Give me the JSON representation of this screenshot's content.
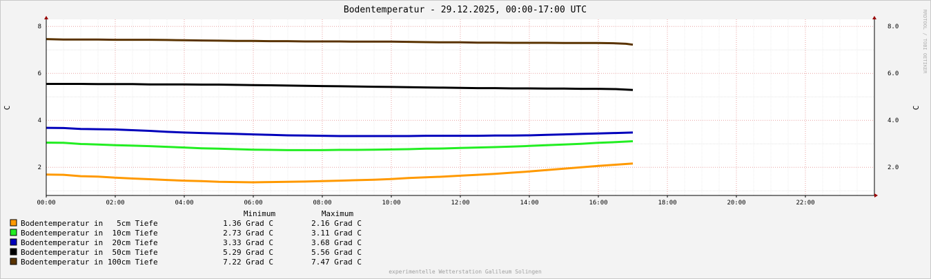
{
  "chart_data": {
    "type": "line",
    "title": "Bodentemperatur - 29.12.2025, 00:00-17:00 UTC",
    "ylabel_left": "C",
    "ylabel_right": "C",
    "watermark": "RRDTOOL / TOBI OETIKER",
    "footer": "experimentelle Wetterstation Galileum Solingen",
    "xlim": [
      0,
      24
    ],
    "ylim": [
      0.8,
      8.3
    ],
    "x_ticks": [
      "00:00",
      "02:00",
      "04:00",
      "06:00",
      "08:00",
      "10:00",
      "12:00",
      "14:00",
      "16:00",
      "18:00",
      "20:00",
      "22:00"
    ],
    "y_ticks_left": [
      "2",
      "4",
      "6",
      "8"
    ],
    "y_ticks_right": [
      "2.0",
      "4.0",
      "6.0",
      "8.0"
    ],
    "legend_header": {
      "min": "Minimum",
      "max": "Maximum"
    },
    "legend_placement": "bottom-left",
    "series": [
      {
        "name": "Bodentemperatur in   5cm Tiefe",
        "color": "#ff9900",
        "min": "1.36 Grad C",
        "max": "2.16 Grad C",
        "x": [
          0,
          0.5,
          1.0,
          1.5,
          2.0,
          2.5,
          3.0,
          3.5,
          4.0,
          4.5,
          5.0,
          5.5,
          6.0,
          6.5,
          7.0,
          7.5,
          8.0,
          8.5,
          9.0,
          9.5,
          10.0,
          10.5,
          11.0,
          11.5,
          12.0,
          12.5,
          13.0,
          13.5,
          14.0,
          14.5,
          15.0,
          15.5,
          16.0,
          16.5,
          17.0
        ],
        "y": [
          1.69,
          1.68,
          1.62,
          1.6,
          1.56,
          1.52,
          1.49,
          1.46,
          1.43,
          1.41,
          1.38,
          1.37,
          1.36,
          1.37,
          1.38,
          1.39,
          1.41,
          1.43,
          1.45,
          1.47,
          1.5,
          1.54,
          1.57,
          1.6,
          1.64,
          1.68,
          1.72,
          1.77,
          1.82,
          1.88,
          1.94,
          2.0,
          2.06,
          2.11,
          2.16
        ]
      },
      {
        "name": "Bodentemperatur in  10cm Tiefe",
        "color": "#22ee22",
        "min": "2.73 Grad C",
        "max": "3.11 Grad C",
        "x": [
          0,
          0.5,
          1.0,
          1.5,
          2.0,
          2.5,
          3.0,
          3.5,
          4.0,
          4.5,
          5.0,
          5.5,
          6.0,
          6.5,
          7.0,
          7.5,
          8.0,
          8.5,
          9.0,
          9.5,
          10.0,
          10.5,
          11.0,
          11.5,
          12.0,
          12.5,
          13.0,
          13.5,
          14.0,
          14.5,
          15.0,
          15.5,
          16.0,
          16.5,
          17.0
        ],
        "y": [
          3.05,
          3.04,
          2.99,
          2.97,
          2.94,
          2.92,
          2.9,
          2.87,
          2.84,
          2.81,
          2.79,
          2.77,
          2.75,
          2.74,
          2.73,
          2.73,
          2.73,
          2.74,
          2.74,
          2.75,
          2.76,
          2.77,
          2.79,
          2.8,
          2.82,
          2.84,
          2.86,
          2.88,
          2.91,
          2.94,
          2.97,
          3.0,
          3.04,
          3.07,
          3.11
        ]
      },
      {
        "name": "Bodentemperatur in  20cm Tiefe",
        "color": "#0000bb",
        "min": "3.33 Grad C",
        "max": "3.68 Grad C",
        "x": [
          0,
          0.5,
          1.0,
          1.5,
          2.0,
          2.5,
          3.0,
          3.5,
          4.0,
          4.5,
          5.0,
          5.5,
          6.0,
          6.5,
          7.0,
          7.5,
          8.0,
          8.5,
          9.0,
          9.5,
          10.0,
          10.5,
          11.0,
          11.5,
          12.0,
          12.5,
          13.0,
          13.5,
          14.0,
          14.5,
          15.0,
          15.5,
          16.0,
          16.5,
          17.0
        ],
        "y": [
          3.68,
          3.67,
          3.63,
          3.62,
          3.61,
          3.58,
          3.55,
          3.51,
          3.48,
          3.46,
          3.44,
          3.42,
          3.4,
          3.38,
          3.36,
          3.35,
          3.34,
          3.33,
          3.33,
          3.33,
          3.33,
          3.33,
          3.34,
          3.34,
          3.34,
          3.34,
          3.35,
          3.35,
          3.36,
          3.38,
          3.4,
          3.42,
          3.44,
          3.46,
          3.48
        ]
      },
      {
        "name": "Bodentemperatur in  50cm Tiefe",
        "color": "#000000",
        "min": "5.29 Grad C",
        "max": "5.56 Grad C",
        "x": [
          0,
          0.5,
          1.0,
          1.5,
          2.0,
          2.5,
          3.0,
          3.5,
          4.0,
          4.5,
          5.0,
          5.5,
          6.0,
          6.5,
          7.0,
          7.5,
          8.0,
          8.5,
          9.0,
          9.5,
          10.0,
          10.5,
          11.0,
          11.5,
          12.0,
          12.5,
          13.0,
          13.5,
          14.0,
          14.5,
          15.0,
          15.5,
          16.0,
          16.5,
          16.8,
          17.0
        ],
        "y": [
          5.55,
          5.55,
          5.55,
          5.54,
          5.54,
          5.54,
          5.53,
          5.53,
          5.53,
          5.52,
          5.52,
          5.51,
          5.5,
          5.49,
          5.48,
          5.47,
          5.46,
          5.45,
          5.44,
          5.43,
          5.42,
          5.41,
          5.4,
          5.39,
          5.38,
          5.37,
          5.37,
          5.36,
          5.36,
          5.35,
          5.35,
          5.34,
          5.34,
          5.33,
          5.31,
          5.29
        ]
      },
      {
        "name": "Bodentemperatur in 100cm Tiefe",
        "color": "#5a3300",
        "min": "7.22 Grad C",
        "max": "7.47 Grad C",
        "x": [
          0,
          0.5,
          1.0,
          1.5,
          2.0,
          2.5,
          3.0,
          3.5,
          4.0,
          4.5,
          5.0,
          5.5,
          6.0,
          6.5,
          7.0,
          7.5,
          8.0,
          8.5,
          9.0,
          9.5,
          10.0,
          10.5,
          11.0,
          11.5,
          12.0,
          12.5,
          13.0,
          13.5,
          14.0,
          14.5,
          15.0,
          15.5,
          16.0,
          16.5,
          16.8,
          17.0
        ],
        "y": [
          7.46,
          7.44,
          7.44,
          7.44,
          7.43,
          7.43,
          7.43,
          7.42,
          7.41,
          7.4,
          7.39,
          7.38,
          7.38,
          7.37,
          7.37,
          7.36,
          7.36,
          7.36,
          7.35,
          7.35,
          7.35,
          7.34,
          7.33,
          7.32,
          7.32,
          7.31,
          7.31,
          7.3,
          7.3,
          7.3,
          7.29,
          7.29,
          7.29,
          7.28,
          7.26,
          7.22
        ]
      }
    ]
  }
}
